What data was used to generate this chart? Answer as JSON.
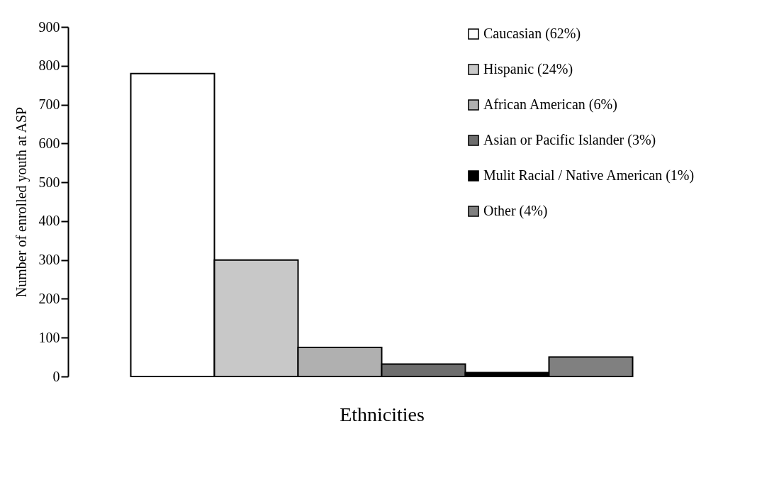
{
  "chart_data": {
    "type": "bar",
    "xlabel": "Ethnicities",
    "ylabel": "Number of enrolled youth at ASP",
    "categories": [
      null,
      null,
      null,
      null,
      null,
      null
    ],
    "series": [
      {
        "name": "Caucasian (62%)",
        "color": "#ffffff",
        "values": [
          780,
          0,
          0,
          0,
          0,
          0
        ]
      },
      {
        "name": "Hispanic (24%)",
        "color": "#c8c8c8",
        "values": [
          0,
          300,
          0,
          0,
          0,
          0
        ]
      },
      {
        "name": "African American (6%)",
        "color": "#b0b0b0",
        "values": [
          0,
          0,
          75,
          0,
          0,
          0
        ]
      },
      {
        "name": "Asian or Pacific Islander (3%)",
        "color": "#6e6e6e",
        "values": [
          0,
          0,
          0,
          32,
          0,
          0
        ]
      },
      {
        "name": "Mulit Racial / Native American (1%)",
        "color": "#000000",
        "values": [
          0,
          0,
          0,
          0,
          10,
          0
        ]
      },
      {
        "name": "Other (4%)",
        "color": "#808080",
        "values": [
          0,
          0,
          0,
          0,
          0,
          50
        ]
      }
    ],
    "stacked": true,
    "ylim": [
      0,
      900
    ],
    "yticks": [
      0,
      100,
      200,
      300,
      400,
      500,
      600,
      700,
      800,
      900
    ],
    "tick_labels": "y",
    "legend": "top right",
    "grid": false
  }
}
